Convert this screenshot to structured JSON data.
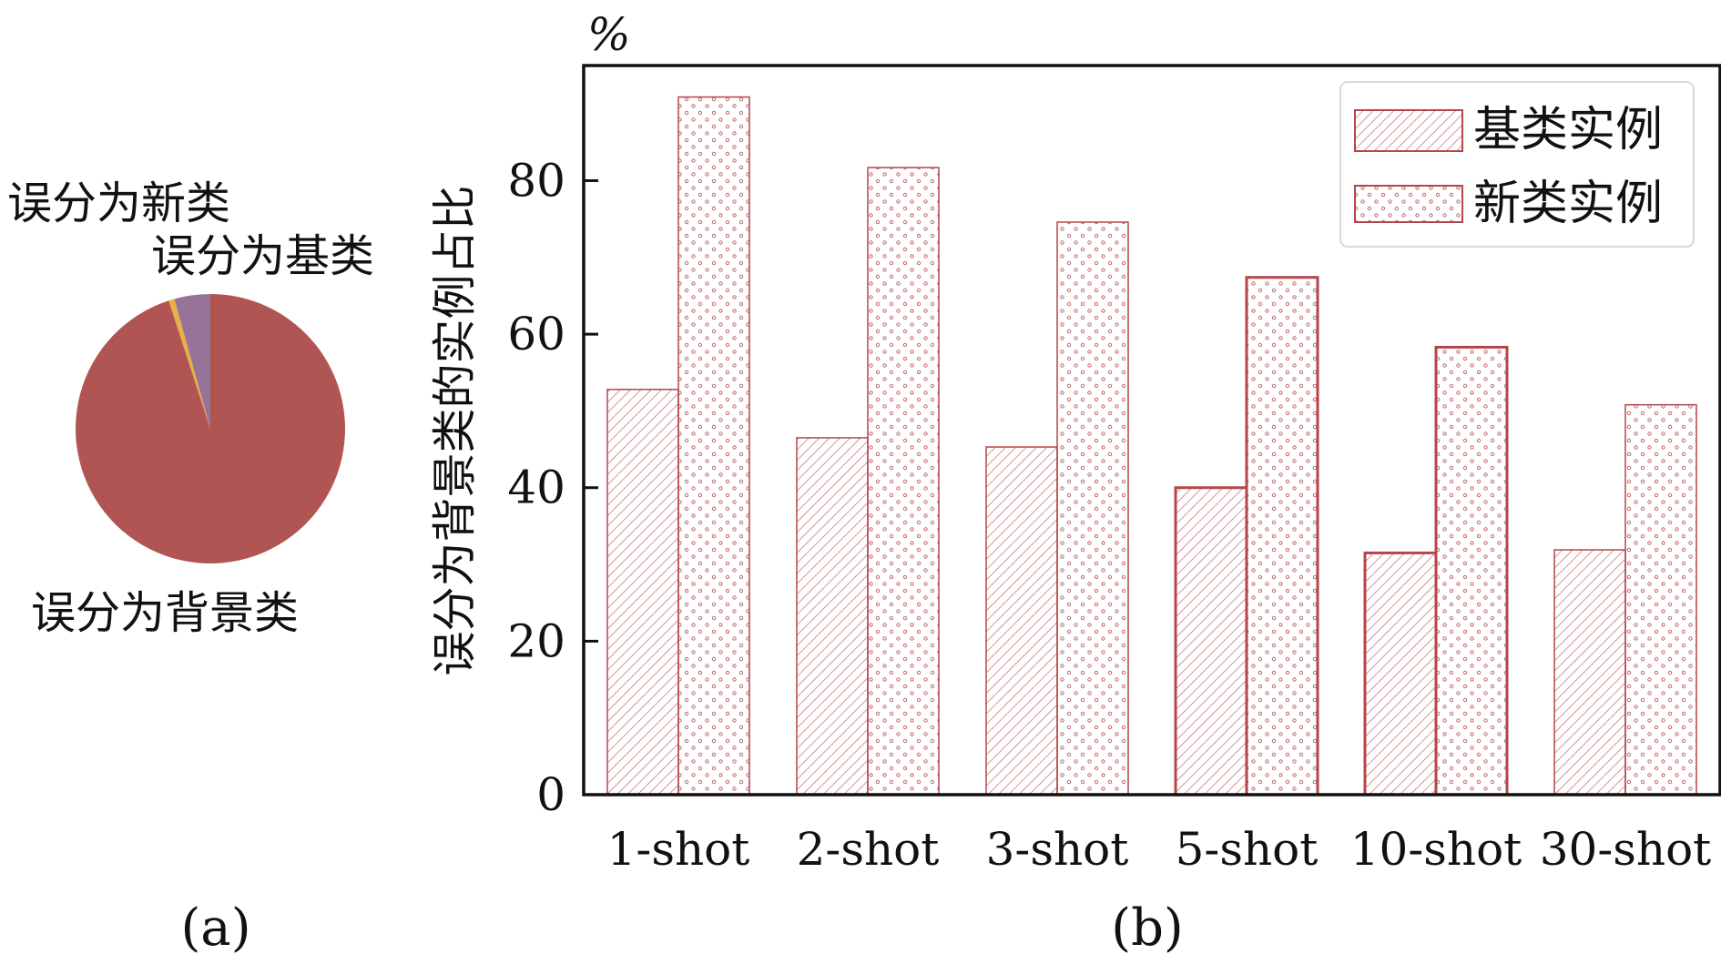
{
  "colors": {
    "bar_stroke": "#b5464a",
    "pie_background": "#b05553",
    "pie_novel": "#e7b143",
    "pie_base": "#97739a",
    "axis": "#111111",
    "legend_border": "#d8d8d8"
  },
  "chart_data": [
    {
      "type": "pie",
      "caption": "(a)",
      "slices": [
        {
          "label": "误分为背景类",
          "value": 95.0,
          "color": "#b05553"
        },
        {
          "label": "误分为新类",
          "value": 0.7,
          "color": "#e7b143"
        },
        {
          "label": "误分为基类",
          "value": 4.3,
          "color": "#97739a"
        }
      ]
    },
    {
      "type": "bar",
      "caption": "(b)",
      "unit": "%",
      "ylabel": "误分为背景类的实例占比",
      "xlabel": "",
      "ylim": [
        0,
        95
      ],
      "yticks": [
        0,
        20,
        40,
        60,
        80
      ],
      "categories": [
        "1-shot",
        "2-shot",
        "3-shot",
        "5-shot",
        "10-shot",
        "30-shot"
      ],
      "series": [
        {
          "name": "基类实例",
          "pattern": "hatch",
          "values": [
            52.8,
            46.5,
            45.3,
            40.0,
            31.5,
            31.9
          ]
        },
        {
          "name": "新类实例",
          "pattern": "dots",
          "values": [
            90.9,
            81.7,
            74.6,
            67.4,
            58.3,
            50.8
          ]
        }
      ],
      "emphasized_categories": [
        "5-shot",
        "10-shot"
      ],
      "legend_position": "top-right",
      "grid": false
    }
  ]
}
